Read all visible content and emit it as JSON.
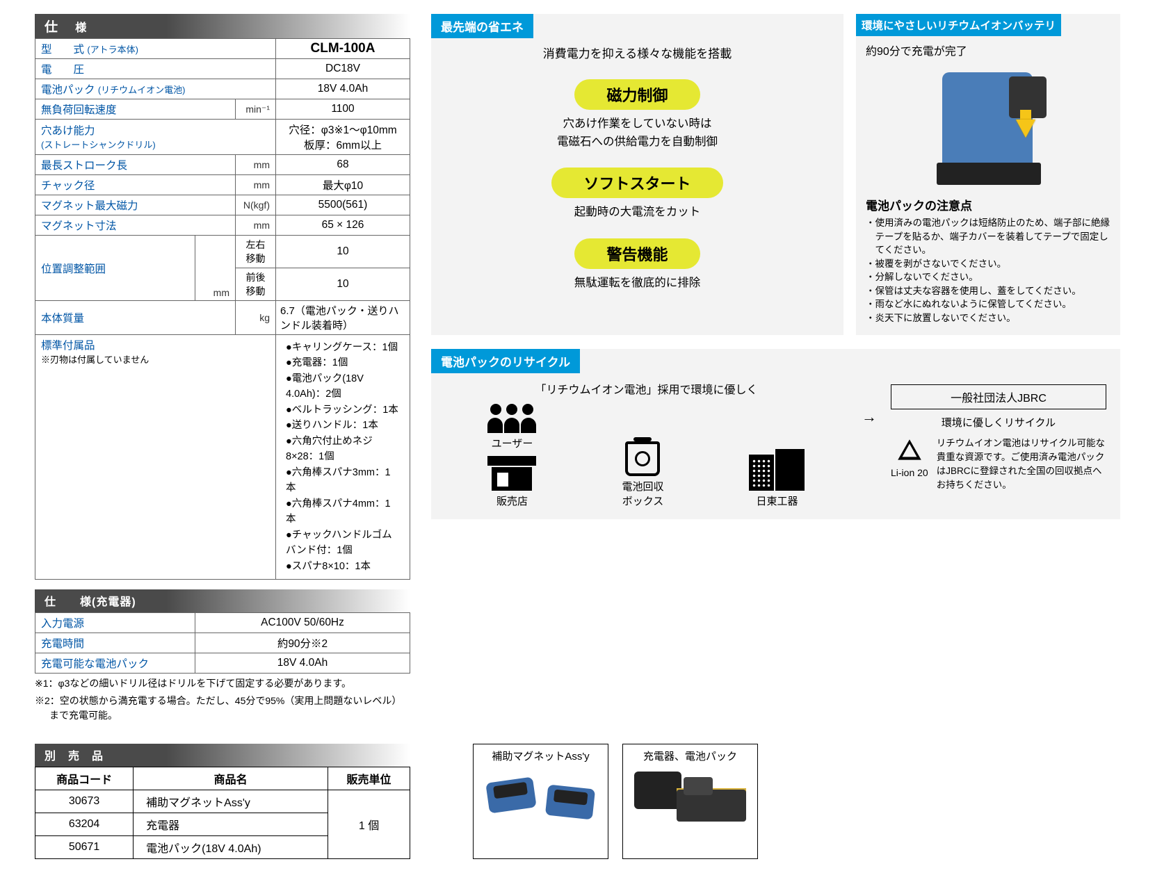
{
  "colors": {
    "header_dark": "#4a4a4a",
    "link_blue": "#0055a5",
    "tag_blue": "#0099d9",
    "pill_yellow": "#e5e833",
    "drill_blue": "#4a7db8",
    "arrow_yellow": "#f5c518",
    "bg_grey": "#f3f3f3"
  },
  "spec": {
    "header_main": "仕",
    "header_sub": "様",
    "rows": [
      {
        "label": "型　　式",
        "note": "(アトラ本体)",
        "value": "CLM-100A",
        "bold": true
      },
      {
        "label": "電　　圧",
        "value": "DC18V"
      },
      {
        "label": "電池パック",
        "note": "(リチウムイオン電池)",
        "value": "18V 4.0Ah"
      },
      {
        "label": "無負荷回転速度",
        "unit": "min⁻¹",
        "value": "1100"
      },
      {
        "label": "穴あけ能力",
        "note2": "(ストレートシャンクドリル)",
        "value": "穴径：φ3※1～φ10mm\n板厚：6mm以上"
      },
      {
        "label": "最長ストローク長",
        "unit": "mm",
        "value": "68"
      },
      {
        "label": "チャック径",
        "unit": "mm",
        "value": "最大φ10"
      },
      {
        "label": "マグネット最大磁力",
        "unit": "N(kgf)",
        "value": "5500(561)"
      },
      {
        "label": "マグネット寸法",
        "unit": "mm",
        "value": "65 × 126"
      }
    ],
    "pos_adjust": {
      "label": "位置調整範囲",
      "unit": "mm",
      "sub1": "左右移動",
      "val1": "10",
      "sub2": "前後移動",
      "val2": "10"
    },
    "weight": {
      "label": "本体質量",
      "unit": "kg",
      "value": "6.7（電池パック・送りハンドル装着時）"
    },
    "accessories": {
      "label": "標準付属品",
      "note": "※刃物は付属していません",
      "items": [
        "●キャリングケース：1個",
        "●充電器：1個",
        "●電池パック(18V 4.0Ah)：2個",
        "●ベルトラッシング：1本",
        "●送りハンドル：1本",
        "●六角穴付止めネジ8×28：1個",
        "●六角棒スパナ3mm：1本",
        "●六角棒スパナ4mm：1本",
        "●チャックハンドルゴムバンド付：1個",
        "●スパナ8×10：1本"
      ]
    }
  },
  "charger": {
    "header": "仕　　様(充電器)",
    "rows": [
      {
        "label": "入力電源",
        "value": "AC100V 50/60Hz"
      },
      {
        "label": "充電時間",
        "value": "約90分※2"
      },
      {
        "label": "充電可能な電池パック",
        "value": "18V 4.0Ah"
      }
    ]
  },
  "footnotes": [
    "※1：φ3などの細いドリル径はドリルを下げて固定する必要があります。",
    "※2：空の状態から満充電する場合。ただし、45分で95%（実用上問題ないレベル）まで充電可能。"
  ],
  "eco": {
    "tag": "最先端の省エネ",
    "lead": "消費電力を抑える様々な機能を搭載",
    "features": [
      {
        "title": "磁力制御",
        "desc": "穴あけ作業をしていない時は\n電磁石への供給電力を自動制御"
      },
      {
        "title": "ソフトスタート",
        "desc": "起動時の大電流をカット"
      },
      {
        "title": "警告機能",
        "desc": "無駄運転を徹底的に排除"
      }
    ]
  },
  "battery": {
    "tag": "環境にやさしいリチウムイオンバッテリ",
    "lead": "約90分で充電が完了",
    "caution_title": "電池パックの注意点",
    "cautions": [
      "・使用済みの電池パックは短絡防止のため、端子部に絶縁テープを貼るか、端子カバーを装着してテープで固定してください。",
      "・被覆を剥がさないでください。",
      "・分解しないでください。",
      "・保管は丈夫な容器を使用し、蓋をしてください。",
      "・雨など水にぬれないように保管してください。",
      "・炎天下に放置しないでください。"
    ]
  },
  "recycle": {
    "tag": "電池パックのリサイクル",
    "lead": "「リチウムイオン電池」採用で環境に優しく",
    "icons": {
      "user": "ユーザー",
      "shop": "販売店",
      "box": "電池回収\nボックス",
      "maker": "日東工器"
    },
    "jbrc": "一般社団法人JBRC",
    "subtitle": "環境に優しくリサイクル",
    "liion_label": "Li-ion 20",
    "text": "リチウムイオン電池はリサイクル可能な貴重な資源です。ご使用済み電池パックはJBRCに登録された全国の回収拠点へお持ちください。"
  },
  "options": {
    "header": "別　売　品",
    "cols": [
      "商品コード",
      "商品名",
      "販売単位"
    ],
    "rows": [
      {
        "code": "30673",
        "name": "補助マグネットAss'y"
      },
      {
        "code": "63204",
        "name": "充電器"
      },
      {
        "code": "50671",
        "name": "電池パック(18V 4.0Ah)"
      }
    ],
    "unit": "1 個"
  },
  "prod_boxes": {
    "a": "補助マグネットAss'y",
    "b": "充電器、電池パック"
  }
}
